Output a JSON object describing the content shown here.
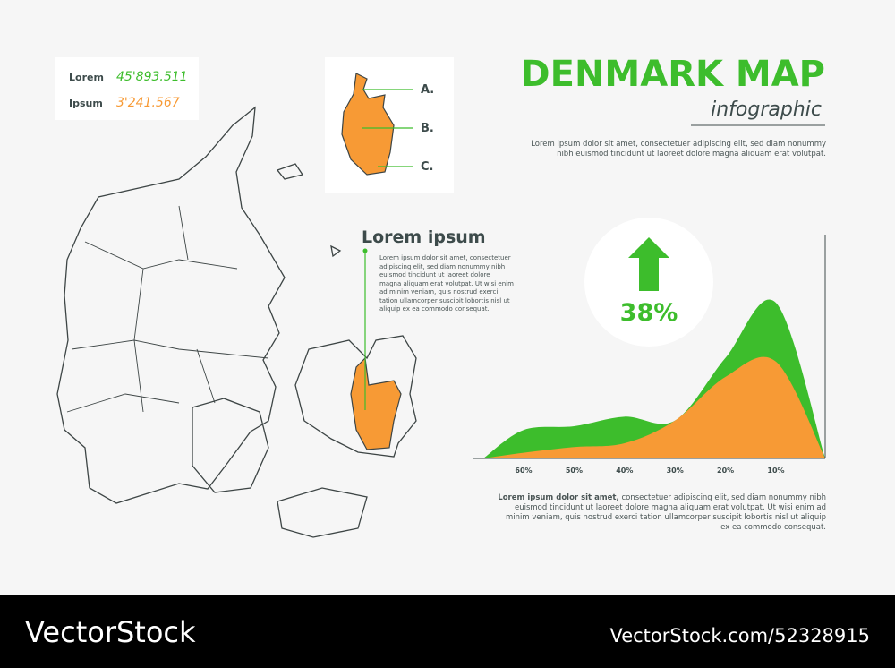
{
  "stats": [
    {
      "label": "Lorem",
      "value": "45'893.511"
    },
    {
      "label": "Ipsum",
      "value": "3'241.567"
    }
  ],
  "inset_labels": [
    "A.",
    "B.",
    "C."
  ],
  "header": {
    "title": "DENMARK MAP",
    "subtitle": "infographic",
    "text": "Lorem ipsum dolor sit amet, consectetuer adipiscing elit, sed diam nonummy nibh euismod tincidunt ut laoreet dolore magna aliquam erat volutpat."
  },
  "callout": {
    "title": "Lorem ipsum",
    "text": "Lorem ipsum dolor sit amet, consectetuer adipiscing elit, sed diam nonummy nibh euismod tincidunt ut laoreet dolore magna aliquam erat volutpat. Ut wisi enim ad minim veniam, quis nostrud exerci tation ullamcorper suscipit lobortis nisl ut aliquip ex ea commodo consequat."
  },
  "highlight": {
    "label": "38%"
  },
  "chart_data": {
    "type": "area",
    "categories": [
      "60%",
      "50%",
      "40%",
      "30%",
      "20%",
      "10%"
    ],
    "ylim": [
      0,
      100
    ],
    "series": [
      {
        "color": "#3dbd2c",
        "values": [
          15,
          17,
          22,
          20,
          53,
          82
        ]
      },
      {
        "color": "#f79a35",
        "values": [
          3,
          6,
          8,
          20,
          43,
          51
        ]
      }
    ]
  },
  "footer": {
    "bold": "Lorem ipsum dolor sit amet,",
    "text": "consectetuer adipiscing elit, sed diam nonummy nibh euismod tincidunt ut laoreet dolore magna aliquam erat volutpat. Ut wisi enim ad minim veniam, quis nostrud exerci tation ullamcorper suscipit lobortis nisl ut aliquip ex ea commodo consequat."
  },
  "watermark": {
    "left": "VectorStock",
    "right": "VectorStock.com/52328915"
  }
}
